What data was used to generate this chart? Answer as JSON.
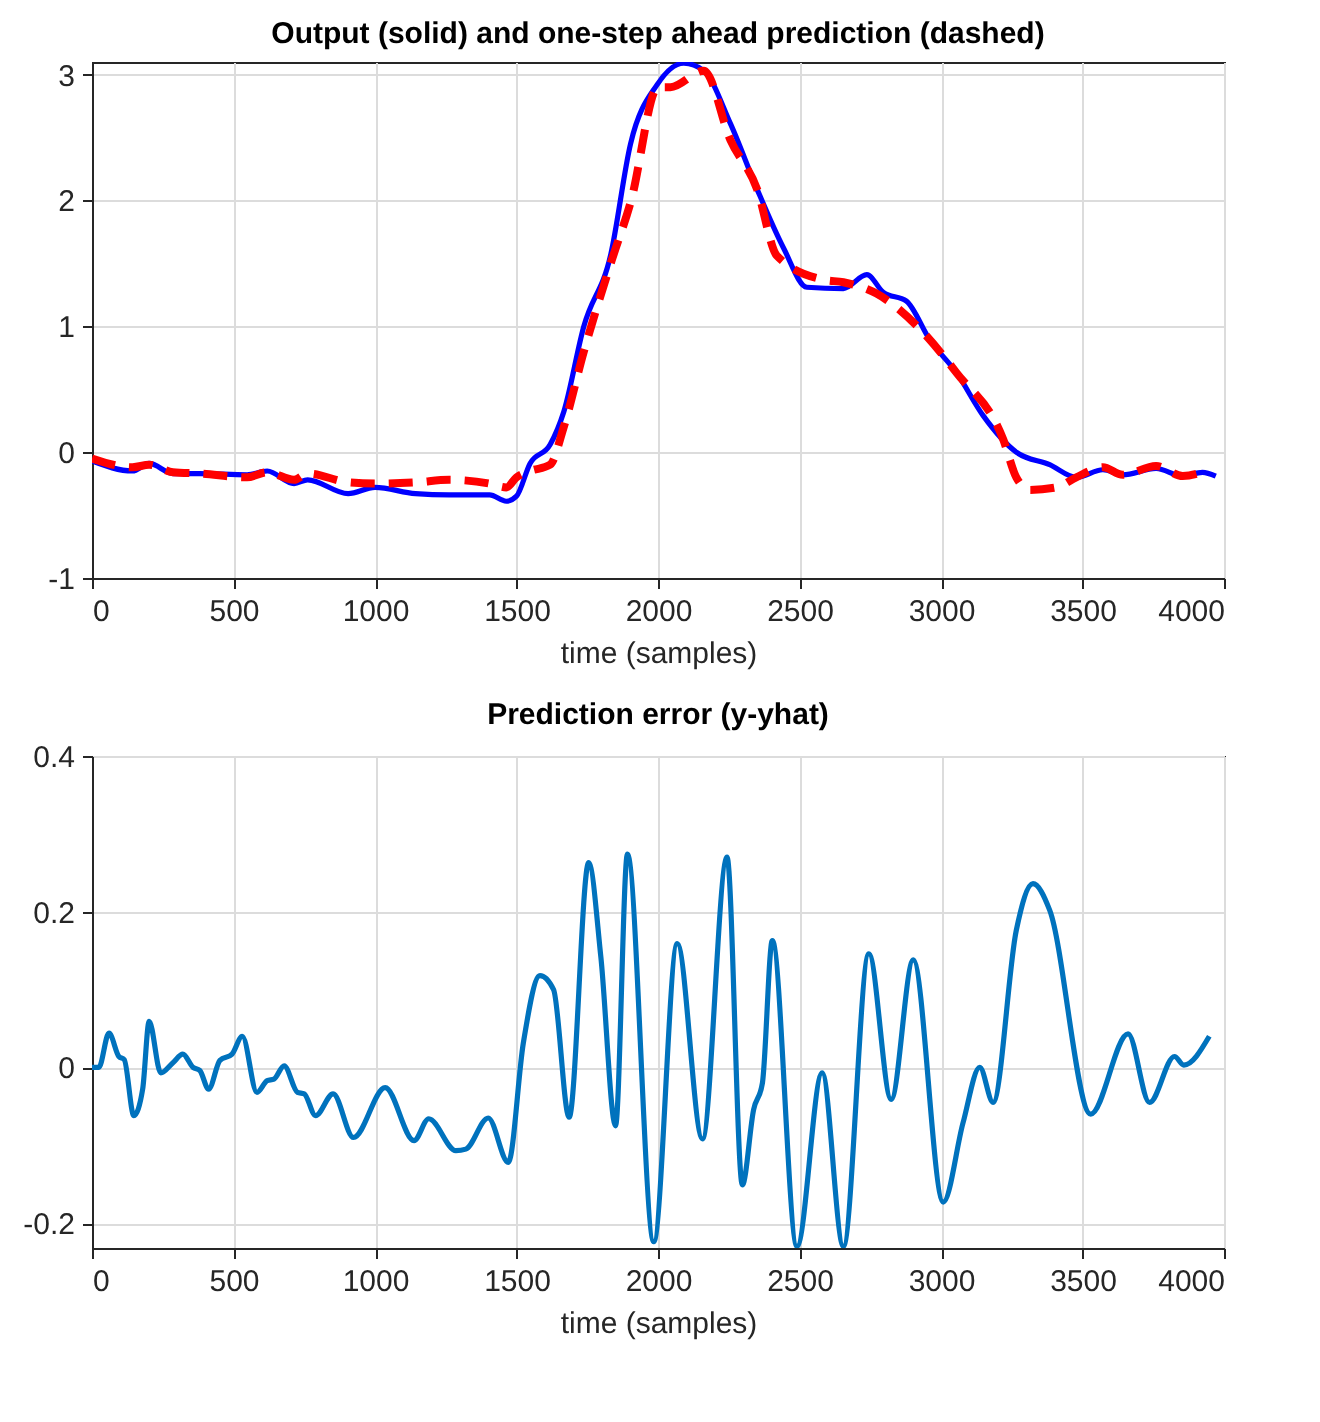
{
  "chart_data": [
    {
      "type": "line",
      "title": "Output (solid) and one-step ahead prediction (dashed)",
      "xlabel": "time (samples)",
      "xlim": [
        0,
        4000
      ],
      "xticks": [
        0,
        500,
        1000,
        1500,
        2000,
        2500,
        3000,
        3500,
        4000
      ],
      "ylim": [
        -1,
        3.1
      ],
      "yticks": [
        -1,
        0,
        1,
        2,
        3
      ],
      "grid": true,
      "series": [
        {
          "color": "#0000ff",
          "line_style": "solid",
          "x": [
            0,
            143,
            202,
            286,
            381,
            548,
            619,
            714,
            762,
            905,
            1000,
            1143,
            1262,
            1405,
            1464,
            1500,
            1548,
            1619,
            1667,
            1738,
            1833,
            1903,
            1997,
            2091,
            2162,
            2256,
            2350,
            2444,
            2526,
            2655,
            2738,
            2796,
            2878,
            2961,
            3055,
            3149,
            3266,
            3384,
            3478,
            3572,
            3642,
            3760,
            3854,
            3924,
            3971
          ],
          "values": [
            -0.07,
            -0.15,
            -0.09,
            -0.17,
            -0.17,
            -0.18,
            -0.15,
            -0.25,
            -0.22,
            -0.33,
            -0.28,
            -0.33,
            -0.34,
            -0.34,
            -0.39,
            -0.35,
            -0.09,
            0.06,
            0.32,
            1.0,
            1.57,
            2.45,
            2.92,
            3.09,
            3.03,
            2.61,
            2.09,
            1.62,
            1.31,
            1.3,
            1.41,
            1.27,
            1.2,
            0.89,
            0.63,
            0.29,
            0.0,
            -0.1,
            -0.2,
            -0.14,
            -0.18,
            -0.13,
            -0.19,
            -0.16,
            -0.19
          ]
        },
        {
          "color": "#ff0000",
          "line_style": "dashed",
          "x": [
            0,
            143,
            202,
            286,
            381,
            548,
            619,
            714,
            762,
            905,
            1000,
            1143,
            1262,
            1405,
            1464,
            1500,
            1548,
            1619,
            1667,
            1738,
            1833,
            1905,
            2000,
            2044,
            2162,
            2256,
            2350,
            2420,
            2585,
            2655,
            2772,
            2925,
            3055,
            3220,
            3266,
            3314,
            3408,
            3478,
            3572,
            3642,
            3760,
            3854,
            3924
          ],
          "values": [
            -0.05,
            -0.12,
            -0.1,
            -0.16,
            -0.17,
            -0.2,
            -0.16,
            -0.22,
            -0.17,
            -0.24,
            -0.25,
            -0.24,
            -0.22,
            -0.25,
            -0.28,
            -0.2,
            -0.15,
            -0.1,
            0.2,
            0.8,
            1.5,
            2.0,
            2.9,
            2.9,
            3.03,
            2.48,
            2.09,
            1.56,
            1.37,
            1.35,
            1.26,
            0.98,
            0.63,
            0.1,
            -0.2,
            -0.3,
            -0.28,
            -0.2,
            -0.12,
            -0.18,
            -0.11,
            -0.19,
            -0.16
          ]
        }
      ]
    },
    {
      "type": "line",
      "title": "Prediction error (y-yhat)",
      "xlabel": "time (samples)",
      "xlim": [
        0,
        4000
      ],
      "xticks": [
        0,
        500,
        1000,
        1500,
        2000,
        2500,
        3000,
        3500,
        4000
      ],
      "ylim": [
        -0.232,
        0.4
      ],
      "yticks": [
        -0.2,
        0,
        0.2,
        0.4
      ],
      "grid": true,
      "series": [
        {
          "color": "#0072bd",
          "line_style": "solid",
          "x": [
            0,
            24,
            60,
            95,
            114,
            148,
            179,
            202,
            243,
            286,
            321,
            357,
            381,
            412,
            452,
            495,
            531,
            583,
            619,
            643,
            679,
            726,
            750,
            790,
            852,
            924,
            1036,
            1138,
            1190,
            1286,
            1321,
            1400,
            1471,
            1524,
            1583,
            1631,
            1686,
            1755,
            1798,
            1850,
            1892,
            1985,
            2068,
            2157,
            2244,
            2298,
            2338,
            2369,
            2404,
            2491,
            2580,
            2655,
            2745,
            2824,
            2902,
            3008,
            3078,
            3137,
            3184,
            3266,
            3325,
            3384,
            3529,
            3661,
            3737,
            3825,
            3858,
            3948
          ],
          "values": [
            0,
            0,
            0.044,
            0.014,
            0.01,
            -0.062,
            -0.028,
            0.059,
            -0.007,
            0.006,
            0.017,
            0,
            -0.004,
            -0.028,
            0.009,
            0.017,
            0.04,
            -0.032,
            -0.017,
            -0.015,
            0.002,
            -0.032,
            -0.034,
            -0.062,
            -0.034,
            -0.09,
            -0.026,
            -0.094,
            -0.066,
            -0.107,
            -0.105,
            -0.065,
            -0.122,
            0.031,
            0.118,
            0.1,
            -0.064,
            0.263,
            0.142,
            -0.075,
            0.274,
            -0.224,
            0.159,
            -0.092,
            0.27,
            -0.151,
            -0.054,
            -0.02,
            0.163,
            -0.23,
            -0.007,
            -0.23,
            0.146,
            -0.041,
            0.138,
            -0.173,
            -0.071,
            0,
            -0.045,
            0.176,
            0.236,
            0.202,
            -0.06,
            0.043,
            -0.045,
            0.014,
            0.003,
            0.04
          ]
        }
      ]
    }
  ]
}
